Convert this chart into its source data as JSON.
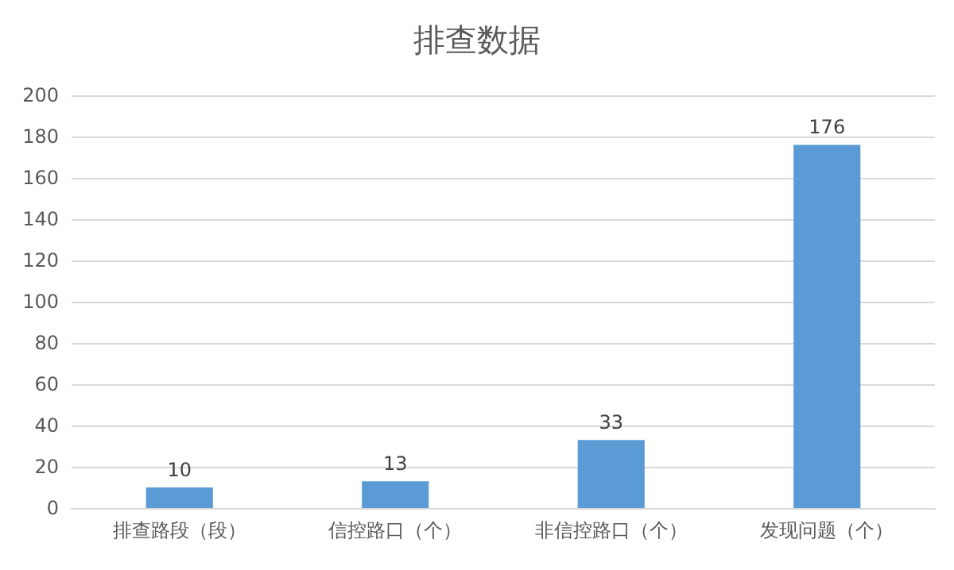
{
  "chart_data": {
    "type": "bar",
    "title": "排查数据",
    "categories": [
      "排查路段（段）",
      "信控路口（个）",
      "非信控路口（个）",
      "发现问题（个）"
    ],
    "values": [
      10,
      13,
      33,
      176
    ],
    "color": "#5b9bd5",
    "ylim": [
      0,
      200
    ],
    "yticks": [
      0,
      20,
      40,
      60,
      80,
      100,
      120,
      140,
      160,
      180,
      200
    ],
    "grid": "y",
    "data_labels": true
  }
}
